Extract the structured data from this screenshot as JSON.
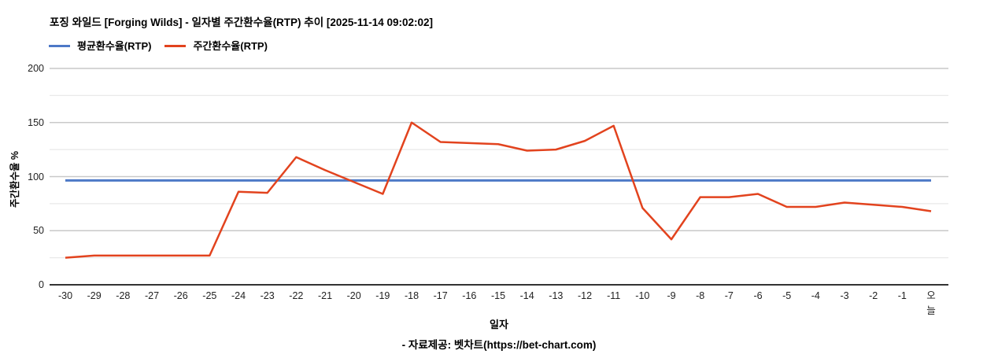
{
  "chart_data": {
    "type": "line",
    "title": "포징 와일드 [Forging Wilds] - 일자별 주간환수율(RTP) 추이 [2025-11-14 09:02:02]",
    "xlabel": "일자",
    "ylabel": "주간환수율 %",
    "x": [
      "-30",
      "-29",
      "-28",
      "-27",
      "-26",
      "-25",
      "-24",
      "-23",
      "-22",
      "-21",
      "-20",
      "-19",
      "-18",
      "-17",
      "-16",
      "-15",
      "-14",
      "-13",
      "-12",
      "-11",
      "-10",
      "-9",
      "-8",
      "-7",
      "-6",
      "-5",
      "-4",
      "-3",
      "-2",
      "-1",
      "오늘"
    ],
    "x_last_label_stacked": true,
    "series": [
      {
        "name": "평균환수율(RTP)",
        "color": "#4d79c7",
        "style": "constant",
        "value": 96.5
      },
      {
        "name": "주간환수율(RTP)",
        "color": "#e2431e",
        "values": [
          25,
          27,
          27,
          27,
          27,
          27,
          86,
          85,
          118,
          106,
          95,
          84,
          150,
          132,
          131,
          130,
          124,
          125,
          133,
          147,
          71,
          42,
          81,
          81,
          84,
          72,
          72,
          76,
          74,
          72,
          68
        ]
      }
    ],
    "ylim": [
      0,
      200
    ],
    "y_ticks": [
      0,
      50,
      100,
      150,
      200
    ],
    "y_minor_ticks": [
      25,
      75,
      125,
      175
    ],
    "grid": true,
    "legend_position": "top-left"
  },
  "footer": {
    "text": "- 자료제공: 벳차트(https://bet-chart.com)"
  },
  "colors": {
    "grid_major": "#c9c9c9",
    "grid_minor": "#e9e9e9",
    "axis_line": "#333333",
    "tick_text": "#222222"
  }
}
